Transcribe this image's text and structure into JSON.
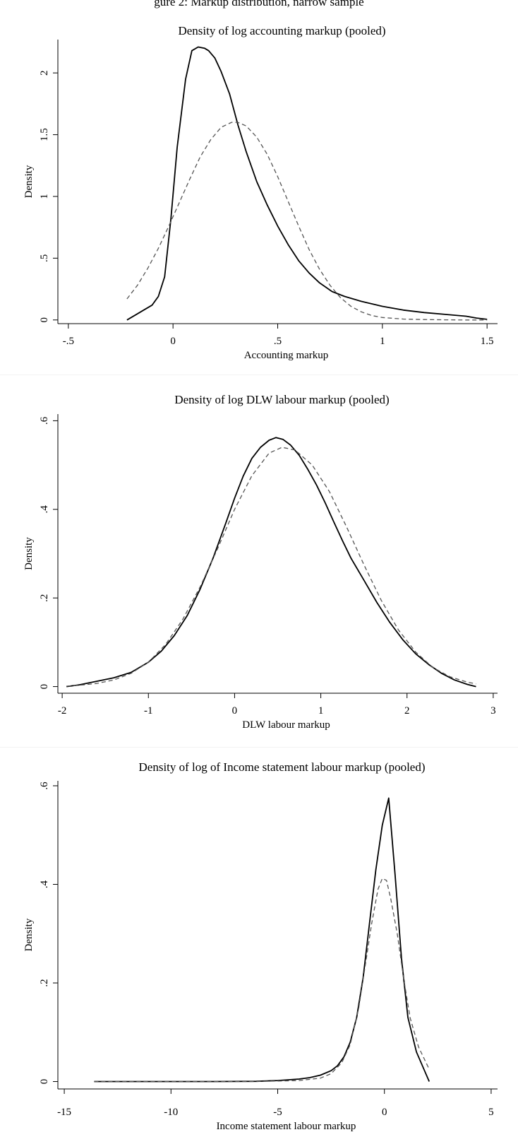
{
  "header": {
    "partial_caption": "gure 2: Markup distribution, narrow sample"
  },
  "chart_data": [
    {
      "type": "line",
      "title": "Density of log accounting markup (pooled)",
      "xlabel": "Accounting markup",
      "ylabel": "Density",
      "xlim": [
        -0.55,
        1.55
      ],
      "ylim": [
        -0.03,
        2.27
      ],
      "xticks": [
        -0.5,
        0,
        0.5,
        1,
        1.5
      ],
      "xtick_labels": [
        "-.5",
        "0",
        ".5",
        "1",
        "1.5"
      ],
      "yticks": [
        0,
        0.5,
        1,
        1.5,
        2
      ],
      "ytick_labels": [
        "0",
        ".5",
        "1",
        "1.5",
        "2"
      ],
      "grid": false,
      "series": [
        {
          "style": "solid",
          "x": [
            -0.22,
            -0.18,
            -0.14,
            -0.1,
            -0.07,
            -0.04,
            -0.01,
            0.02,
            0.06,
            0.09,
            0.12,
            0.15,
            0.17,
            0.2,
            0.23,
            0.27,
            0.31,
            0.35,
            0.4,
            0.45,
            0.5,
            0.55,
            0.6,
            0.65,
            0.7,
            0.76,
            0.82,
            0.9,
            1.0,
            1.1,
            1.2,
            1.3,
            1.4,
            1.45,
            1.5
          ],
          "y": [
            0.0,
            0.04,
            0.08,
            0.12,
            0.19,
            0.35,
            0.82,
            1.4,
            1.95,
            2.18,
            2.21,
            2.2,
            2.18,
            2.12,
            2.01,
            1.83,
            1.58,
            1.36,
            1.12,
            0.93,
            0.76,
            0.61,
            0.48,
            0.38,
            0.3,
            0.23,
            0.19,
            0.15,
            0.11,
            0.08,
            0.06,
            0.045,
            0.03,
            0.015,
            0.005
          ]
        },
        {
          "style": "dashed",
          "x": [
            -0.22,
            -0.17,
            -0.12,
            -0.07,
            -0.02,
            0.03,
            0.08,
            0.13,
            0.18,
            0.23,
            0.28,
            0.31,
            0.35,
            0.4,
            0.45,
            0.5,
            0.55,
            0.6,
            0.65,
            0.7,
            0.75,
            0.8,
            0.85,
            0.9,
            0.95,
            1.0,
            1.1,
            1.2,
            1.3,
            1.4,
            1.5
          ],
          "y": [
            0.17,
            0.28,
            0.42,
            0.58,
            0.76,
            0.95,
            1.14,
            1.32,
            1.46,
            1.56,
            1.6,
            1.6,
            1.57,
            1.48,
            1.34,
            1.16,
            0.96,
            0.76,
            0.57,
            0.41,
            0.28,
            0.18,
            0.11,
            0.065,
            0.035,
            0.02,
            0.007,
            0.003,
            0.001,
            0.0,
            0.0
          ]
        }
      ]
    },
    {
      "type": "line",
      "title": "Density of log DLW labour markup (pooled)",
      "xlabel": "DLW labour markup",
      "ylabel": "Density",
      "xlim": [
        -2.05,
        3.05
      ],
      "ylim": [
        -0.015,
        0.615
      ],
      "xticks": [
        -2,
        -1,
        0,
        1,
        2,
        3
      ],
      "xtick_labels": [
        "-2",
        "-1",
        "0",
        "1",
        "2",
        "3"
      ],
      "yticks": [
        0,
        0.2,
        0.4,
        0.6
      ],
      "ytick_labels": [
        "0",
        ".2",
        ".4",
        ".6"
      ],
      "grid": false,
      "series": [
        {
          "style": "solid",
          "x": [
            -1.95,
            -1.8,
            -1.6,
            -1.4,
            -1.2,
            -1.0,
            -0.85,
            -0.7,
            -0.55,
            -0.4,
            -0.25,
            -0.1,
            0.0,
            0.1,
            0.2,
            0.3,
            0.4,
            0.48,
            0.56,
            0.65,
            0.75,
            0.85,
            0.95,
            1.05,
            1.15,
            1.25,
            1.35,
            1.5,
            1.65,
            1.8,
            1.95,
            2.1,
            2.25,
            2.4,
            2.55,
            2.7,
            2.8
          ],
          "y": [
            0.0,
            0.004,
            0.012,
            0.02,
            0.032,
            0.055,
            0.08,
            0.115,
            0.16,
            0.22,
            0.29,
            0.37,
            0.425,
            0.475,
            0.515,
            0.54,
            0.556,
            0.562,
            0.558,
            0.545,
            0.522,
            0.49,
            0.455,
            0.415,
            0.372,
            0.33,
            0.29,
            0.24,
            0.19,
            0.145,
            0.106,
            0.074,
            0.05,
            0.03,
            0.015,
            0.005,
            0.0
          ]
        },
        {
          "style": "dashed",
          "x": [
            -1.95,
            -1.8,
            -1.6,
            -1.4,
            -1.2,
            -1.0,
            -0.8,
            -0.6,
            -0.4,
            -0.2,
            0.0,
            0.2,
            0.4,
            0.55,
            0.7,
            0.9,
            1.1,
            1.3,
            1.5,
            1.7,
            1.9,
            2.1,
            2.3,
            2.5,
            2.7,
            2.8
          ],
          "y": [
            0.001,
            0.003,
            0.007,
            0.015,
            0.03,
            0.055,
            0.095,
            0.152,
            0.225,
            0.31,
            0.4,
            0.476,
            0.527,
            0.54,
            0.534,
            0.5,
            0.44,
            0.36,
            0.275,
            0.195,
            0.128,
            0.078,
            0.043,
            0.022,
            0.01,
            0.006
          ]
        }
      ]
    },
    {
      "type": "line",
      "title": "Density of log of Income statement labour markup (pooled)",
      "xlabel": "Income statement labour markup",
      "ylabel": "Density",
      "xlim": [
        -15.3,
        5.3
      ],
      "ylim": [
        -0.015,
        0.61
      ],
      "xticks": [
        -15,
        -10,
        -5,
        0,
        5
      ],
      "xtick_labels": [
        "-15",
        "-10",
        "-5",
        "0",
        "5"
      ],
      "yticks": [
        0,
        0.2,
        0.4,
        0.6
      ],
      "ytick_labels": [
        "0",
        ".2",
        ".4",
        ".6"
      ],
      "grid": false,
      "series": [
        {
          "style": "solid",
          "x": [
            -13.6,
            -12,
            -10,
            -8,
            -6,
            -5,
            -4,
            -3.5,
            -3,
            -2.5,
            -2.2,
            -1.9,
            -1.6,
            -1.3,
            -1.0,
            -0.7,
            -0.4,
            -0.1,
            0.2,
            0.5,
            0.8,
            1.1,
            1.5,
            2.1
          ],
          "y": [
            0.0,
            0.0,
            0.0,
            0.0,
            0.0005,
            0.002,
            0.005,
            0.008,
            0.013,
            0.022,
            0.032,
            0.05,
            0.08,
            0.13,
            0.21,
            0.32,
            0.43,
            0.52,
            0.575,
            0.42,
            0.25,
            0.13,
            0.06,
            0.0
          ]
        },
        {
          "style": "dashed",
          "x": [
            -13.6,
            -10,
            -6,
            -4,
            -3,
            -2.5,
            -2.0,
            -1.6,
            -1.2,
            -0.9,
            -0.6,
            -0.3,
            -0.1,
            0.1,
            0.3,
            0.6,
            0.9,
            1.2,
            1.6,
            2.1
          ],
          "y": [
            0.0,
            0.0,
            0.0,
            0.002,
            0.007,
            0.016,
            0.038,
            0.075,
            0.15,
            0.235,
            0.32,
            0.39,
            0.412,
            0.408,
            0.37,
            0.3,
            0.21,
            0.13,
            0.07,
            0.025
          ]
        }
      ]
    }
  ]
}
